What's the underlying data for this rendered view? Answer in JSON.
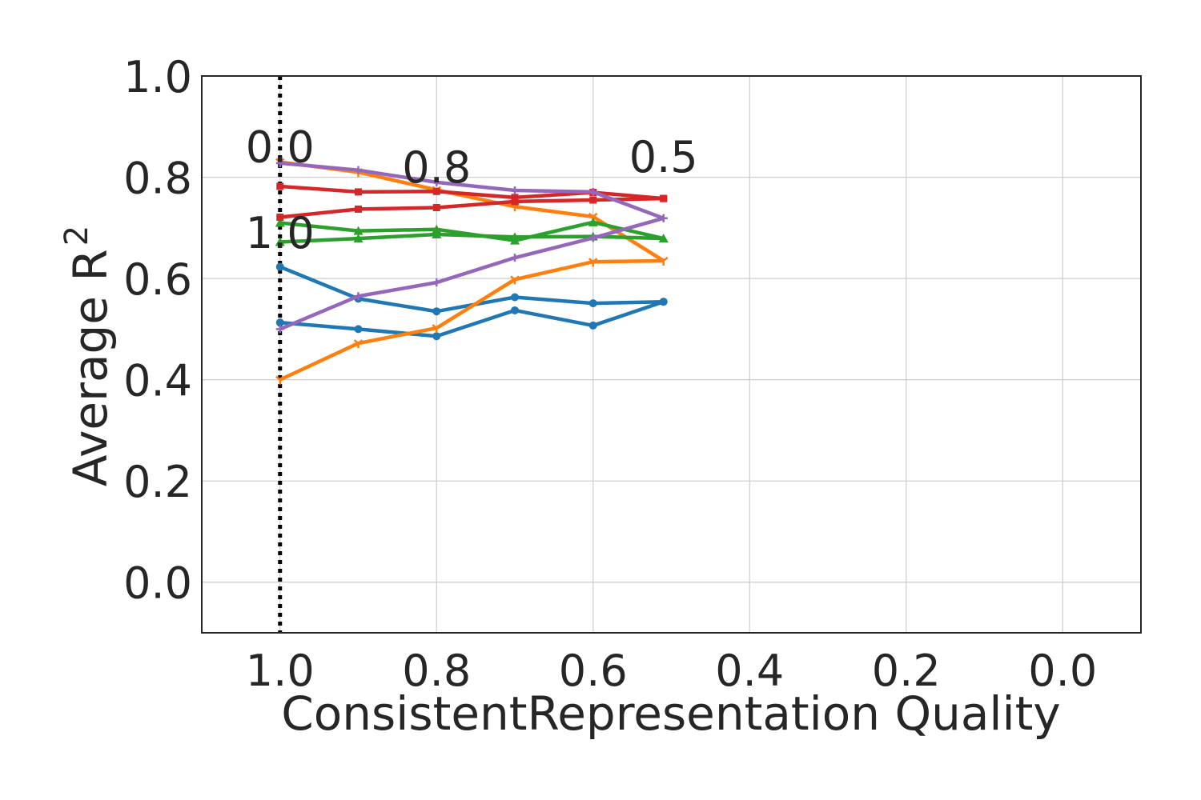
{
  "chart_data": {
    "type": "line",
    "xlabel": "ConsistentRepresentation Quality",
    "ylabel": "Average R",
    "ylabel_sup": "2",
    "xlim": [
      1.1,
      -0.1
    ],
    "ylim": [
      -0.1,
      1.0
    ],
    "xticks": [
      1.0,
      0.8,
      0.6,
      0.4,
      0.2,
      0.0
    ],
    "xtick_labels": [
      "1.0",
      "0.8",
      "0.6",
      "0.4",
      "0.2",
      "0.0"
    ],
    "yticks": [
      0.0,
      0.2,
      0.4,
      0.6,
      0.8,
      1.0
    ],
    "ytick_labels": [
      "0.0",
      "0.2",
      "0.4",
      "0.6",
      "0.8",
      "1.0"
    ],
    "grid": true,
    "reference_line": {
      "x": 1.0,
      "style": "dotted",
      "color": "#000000"
    },
    "annotations": [
      {
        "text": "0.0",
        "x": 1.0,
        "y": 0.83
      },
      {
        "text": "0.8",
        "x": 0.8,
        "y": 0.79
      },
      {
        "text": "0.5",
        "x": 0.51,
        "y": 0.81
      },
      {
        "text": "1.0",
        "x": 1.0,
        "y": 0.66
      }
    ],
    "series": [
      {
        "color": "#1f77b4",
        "marker": "circle",
        "x": [
          1.0,
          0.9,
          0.8,
          0.7,
          0.6,
          0.51
        ],
        "y": [
          0.623,
          0.56,
          0.535,
          0.563,
          0.551,
          0.554
        ]
      },
      {
        "color": "#1f77b4",
        "marker": "circle",
        "x": [
          1.0,
          0.9,
          0.8,
          0.7,
          0.6,
          0.51
        ],
        "y": [
          0.513,
          0.5,
          0.486,
          0.537,
          0.507,
          0.554
        ]
      },
      {
        "color": "#ff7f0e",
        "marker": "tri_down",
        "x": [
          1.0,
          0.9,
          0.8,
          0.7,
          0.6,
          0.51
        ],
        "y": [
          0.83,
          0.81,
          0.775,
          0.742,
          0.722,
          0.635
        ]
      },
      {
        "color": "#ff7f0e",
        "marker": "tri_down",
        "x": [
          1.0,
          0.9,
          0.8,
          0.7,
          0.6,
          0.51
        ],
        "y": [
          0.4,
          0.472,
          0.502,
          0.598,
          0.633,
          0.635
        ]
      },
      {
        "color": "#2ca02c",
        "marker": "triangle",
        "x": [
          1.0,
          0.9,
          0.8,
          0.7,
          0.6,
          0.51
        ],
        "y": [
          0.71,
          0.694,
          0.697,
          0.675,
          0.711,
          0.679
        ]
      },
      {
        "color": "#2ca02c",
        "marker": "triangle",
        "x": [
          1.0,
          0.9,
          0.8,
          0.7,
          0.6,
          0.51
        ],
        "y": [
          0.672,
          0.679,
          0.687,
          0.682,
          0.683,
          0.679
        ]
      },
      {
        "color": "#d62728",
        "marker": "square",
        "x": [
          1.0,
          0.9,
          0.8,
          0.7,
          0.6,
          0.51
        ],
        "y": [
          0.782,
          0.771,
          0.772,
          0.76,
          0.77,
          0.758
        ]
      },
      {
        "color": "#d62728",
        "marker": "square",
        "x": [
          1.0,
          0.9,
          0.8,
          0.7,
          0.6,
          0.51
        ],
        "y": [
          0.721,
          0.737,
          0.74,
          0.752,
          0.755,
          0.758
        ]
      },
      {
        "color": "#9467bd",
        "marker": "plus",
        "x": [
          1.0,
          0.9,
          0.8,
          0.7,
          0.6,
          0.51
        ],
        "y": [
          0.828,
          0.814,
          0.79,
          0.774,
          0.771,
          0.719
        ]
      },
      {
        "color": "#9467bd",
        "marker": "plus",
        "x": [
          1.0,
          0.9,
          0.8,
          0.7,
          0.6,
          0.51
        ],
        "y": [
          0.5,
          0.565,
          0.592,
          0.641,
          0.68,
          0.719
        ]
      }
    ]
  }
}
